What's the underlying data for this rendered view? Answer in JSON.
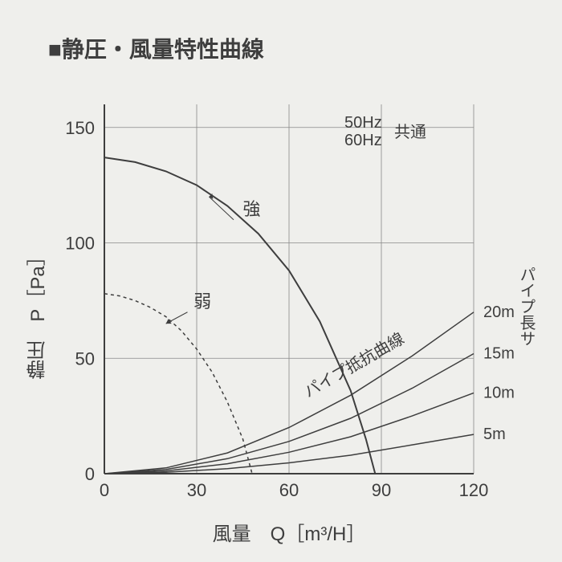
{
  "title": "■静圧・風量特性曲線",
  "chart": {
    "type": "line",
    "background_color": "#efefec",
    "grid_color": "#888888",
    "axis_color": "#3e3e3e",
    "text_color": "#3e3e3e",
    "x_axis": {
      "label": "風量　Q［m³/H］",
      "min": 0,
      "max": 120,
      "tick_step": 30,
      "ticks": [
        0,
        30,
        60,
        90,
        120
      ],
      "label_fontsize": 24,
      "tick_fontsize": 22
    },
    "y_axis": {
      "label": "静圧　P［Pa］",
      "min": 0,
      "max": 160,
      "tick_step": 50,
      "ticks": [
        0,
        50,
        100,
        150
      ],
      "label_fontsize": 24,
      "tick_fontsize": 22
    },
    "annotations": {
      "freq": {
        "lines": [
          "50Hz",
          "60Hz"
        ],
        "suffix": "共通",
        "fontsize": 20
      },
      "tsuyoi": {
        "text": "強",
        "fontsize": 22
      },
      "yowai": {
        "text": "弱",
        "fontsize": 22
      },
      "pipe_resistance": {
        "text": "パイプ抵抗曲線",
        "fontsize": 20
      },
      "pipe_length": {
        "text": "パイプ長サ",
        "fontsize": 20
      }
    },
    "fan_curves": [
      {
        "name": "tsuyoi",
        "label": "強",
        "style": "solid",
        "color": "#3e3e3e",
        "line_width": 2,
        "points": [
          [
            0,
            137
          ],
          [
            10,
            135
          ],
          [
            20,
            131
          ],
          [
            30,
            125
          ],
          [
            40,
            116
          ],
          [
            50,
            104
          ],
          [
            60,
            88
          ],
          [
            70,
            66
          ],
          [
            80,
            36
          ],
          [
            85,
            15
          ],
          [
            88,
            0
          ]
        ]
      },
      {
        "name": "yowai",
        "label": "弱",
        "style": "dashed",
        "color": "#3e3e3e",
        "line_width": 1.5,
        "points": [
          [
            0,
            78
          ],
          [
            5,
            77
          ],
          [
            10,
            75
          ],
          [
            15,
            72
          ],
          [
            20,
            68
          ],
          [
            25,
            62
          ],
          [
            30,
            54
          ],
          [
            35,
            44
          ],
          [
            40,
            31
          ],
          [
            45,
            15
          ],
          [
            48,
            0
          ]
        ]
      }
    ],
    "pipe_curves": [
      {
        "label": "20m",
        "points": [
          [
            0,
            0
          ],
          [
            20,
            2.5
          ],
          [
            40,
            9
          ],
          [
            60,
            20
          ],
          [
            80,
            34
          ],
          [
            100,
            51
          ],
          [
            120,
            70
          ]
        ]
      },
      {
        "label": "15m",
        "points": [
          [
            0,
            0
          ],
          [
            20,
            1.8
          ],
          [
            40,
            6.5
          ],
          [
            60,
            14
          ],
          [
            80,
            24
          ],
          [
            100,
            37
          ],
          [
            120,
            52
          ]
        ]
      },
      {
        "label": "10m",
        "points": [
          [
            0,
            0
          ],
          [
            20,
            1.2
          ],
          [
            40,
            4.3
          ],
          [
            60,
            9.3
          ],
          [
            80,
            16
          ],
          [
            100,
            25
          ],
          [
            120,
            35
          ]
        ]
      },
      {
        "label": "5m",
        "points": [
          [
            0,
            0
          ],
          [
            20,
            0.6
          ],
          [
            40,
            2.2
          ],
          [
            60,
            4.7
          ],
          [
            80,
            8
          ],
          [
            100,
            12.5
          ],
          [
            120,
            17
          ]
        ]
      }
    ],
    "pipe_line_color": "#3e3e3e",
    "pipe_line_width": 1.5
  }
}
